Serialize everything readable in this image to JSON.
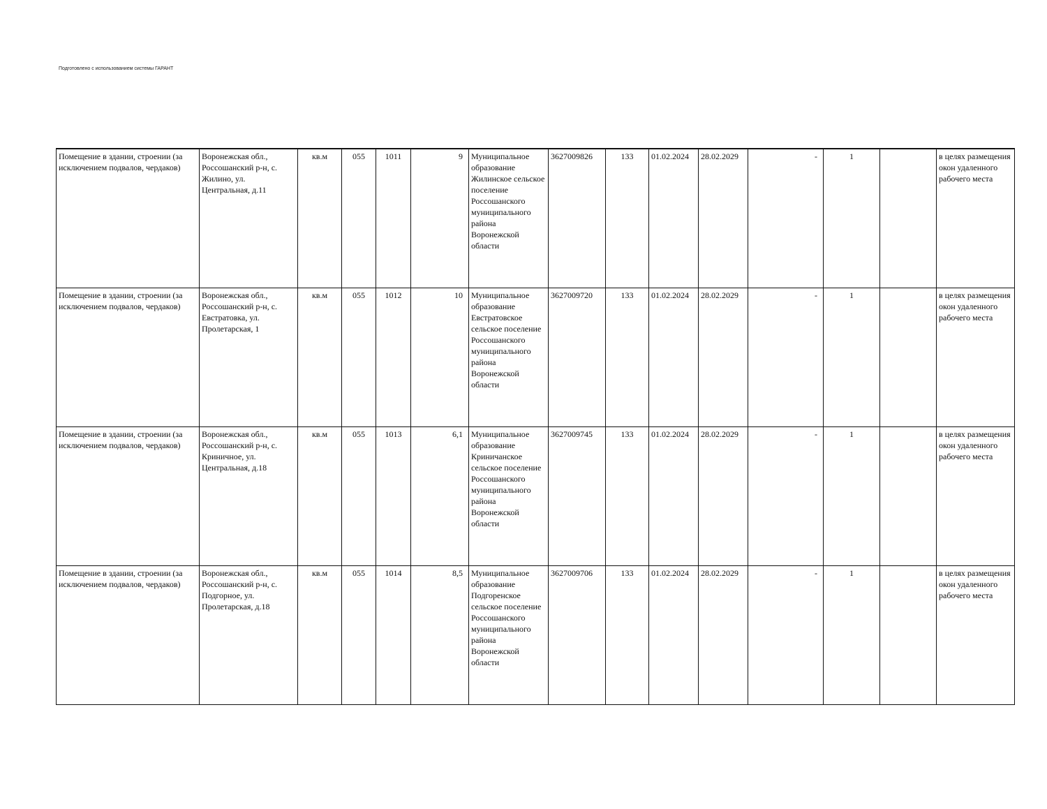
{
  "header_note": "Подготовлено с использованием системы ГАРАНТ",
  "rows": [
    {
      "object": "Помещение в здании, строении (за исключением подвалов, чердаков)",
      "address": "Воронежская обл., Россошанский р-н, с. Жилино, ул. Центральная, д.11",
      "unit": "кв.м",
      "code": "055",
      "number": "1011",
      "area": "9",
      "owner": "Муниципальное образование Жилинское сельское поселение Россошанского муниципального района Воронежской области",
      "inn": "3627009826",
      "col9": "133",
      "date_from": "01.02.2024",
      "date_to": "28.02.2029",
      "col12": "-",
      "col13": "1",
      "col14": "",
      "purpose": "в целях размещения окон удаленного рабочего места"
    },
    {
      "object": "Помещение в здании, строении (за исключением подвалов, чердаков)",
      "address": "Воронежская обл., Россошанский р-н, с. Евстратовка, ул. Пролетарская, 1",
      "unit": "кв.м",
      "code": "055",
      "number": "1012",
      "area": "10",
      "owner": "Муниципальное образование Евстратовское сельское поселение Россошанского муниципального района Воронежской области",
      "inn": "3627009720",
      "col9": "133",
      "date_from": "01.02.2024",
      "date_to": "28.02.2029",
      "col12": "-",
      "col13": "1",
      "col14": "",
      "purpose": "в целях размещения окон удаленного рабочего места"
    },
    {
      "object": "Помещение в здании, строении (за исключением подвалов, чердаков)",
      "address": "Воронежская обл., Россошанский р-н, с. Криничное, ул. Центральная, д.18",
      "unit": "кв.м",
      "code": "055",
      "number": "1013",
      "area": "6,1",
      "owner": "Муниципальное образование Криничанское сельское поселение Россошанского муниципального района Воронежской области",
      "inn": "3627009745",
      "col9": "133",
      "date_from": "01.02.2024",
      "date_to": "28.02.2029",
      "col12": "-",
      "col13": "1",
      "col14": "",
      "purpose": "в целях размещения окон удаленного рабочего места"
    },
    {
      "object": "Помещение в здании, строении (за исключением подвалов, чердаков)",
      "address": "Воронежская обл., Россошанский р-н, с. Подгорное, ул. Пролетарская, д.18",
      "unit": "кв.м",
      "code": "055",
      "number": "1014",
      "area": "8,5",
      "owner": "Муниципальное образование Подгоренское сельское поселение Россошанского муниципального района Воронежской области",
      "inn": "3627009706",
      "col9": "133",
      "date_from": "01.02.2024",
      "date_to": "28.02.2029",
      "col12": "-",
      "col13": "1",
      "col14": "",
      "purpose": "в целях размещения окон удаленного рабочего места"
    }
  ]
}
